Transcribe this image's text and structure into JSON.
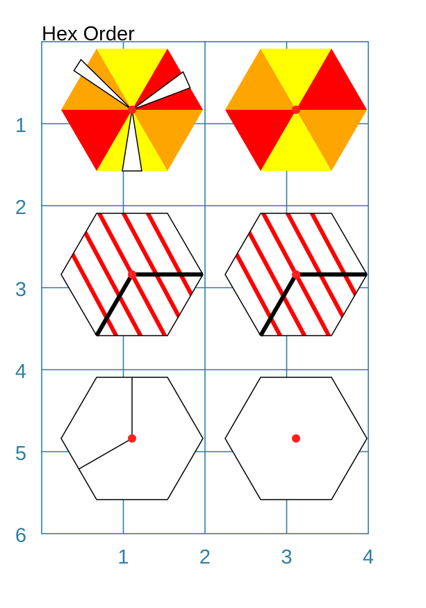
{
  "title": "Hex Order",
  "colors": {
    "grid": "#2e7fa3",
    "tick_text": "#2e7fa3",
    "red": "#ff0000",
    "orange": "#ffa500",
    "yellow": "#ffff00",
    "white": "#ffffff",
    "black": "#000000",
    "dot": "#ff2020"
  },
  "axes": {
    "x_ticks": [
      "1",
      "2",
      "3",
      "4"
    ],
    "y_ticks": [
      "1",
      "2",
      "3",
      "4",
      "5",
      "6"
    ],
    "x_range": [
      0,
      4
    ],
    "y_range": [
      0,
      6
    ],
    "grid": true
  },
  "panels": [
    {
      "name": "hex-colored-with-gaps",
      "style": "sectors-gapped",
      "row": 1,
      "col": 1
    },
    {
      "name": "hex-colored",
      "style": "sectors",
      "row": 1,
      "col": 2
    },
    {
      "name": "hex-hatched-with-spokes",
      "style": "hatched",
      "row": 2,
      "col": 1
    },
    {
      "name": "hex-hatched-with-spokes-2",
      "style": "hatched",
      "row": 2,
      "col": 2
    },
    {
      "name": "hex-outline-with-spokes",
      "style": "spokes",
      "row": 3,
      "col": 1
    },
    {
      "name": "hex-outline-plain",
      "style": "plain",
      "row": 3,
      "col": 2
    }
  ]
}
